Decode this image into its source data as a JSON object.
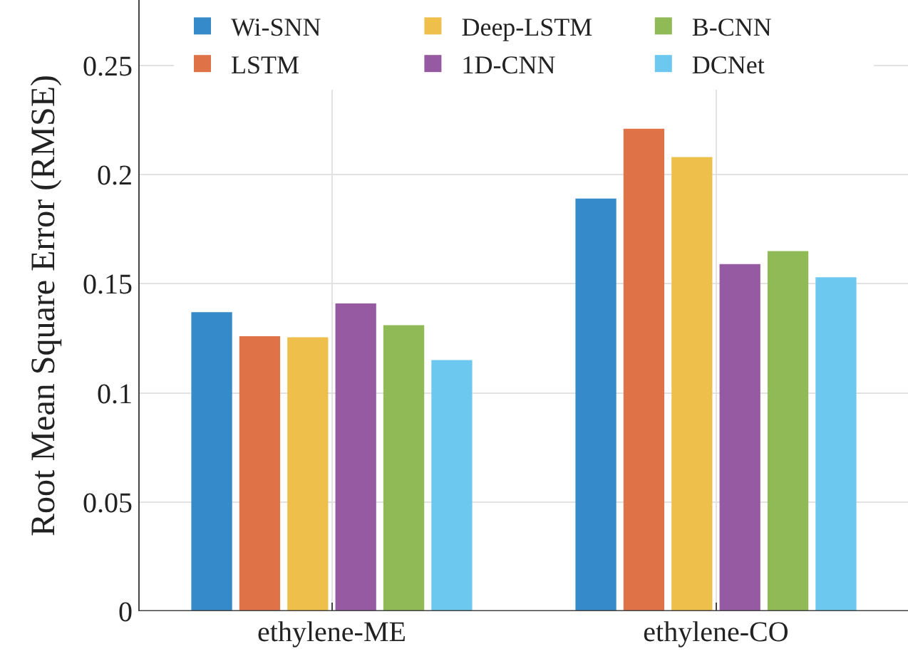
{
  "chart_data": {
    "type": "bar",
    "ylabel": "Root Mean Square Error (RMSE)",
    "categories": [
      "ethylene-ME",
      "ethylene-CO"
    ],
    "series": [
      {
        "name": "Wi-SNN",
        "color": "#358ac9",
        "values": [
          0.137,
          0.189
        ]
      },
      {
        "name": "LSTM",
        "color": "#e07248",
        "values": [
          0.126,
          0.221
        ]
      },
      {
        "name": "Deep-LSTM",
        "color": "#eebf4b",
        "values": [
          0.1255,
          0.208
        ]
      },
      {
        "name": "1D-CNN",
        "color": "#965aa2",
        "values": [
          0.141,
          0.159
        ]
      },
      {
        "name": "B-CNN",
        "color": "#8fba55",
        "values": [
          0.131,
          0.165
        ]
      },
      {
        "name": "DCNet",
        "color": "#6cc8ef",
        "values": [
          0.115,
          0.153
        ]
      }
    ],
    "ylim": [
      0,
      0.28
    ],
    "yticks": [
      0,
      0.05,
      0.1,
      {
        "value": 0.15,
        "label": "0.15"
      },
      {
        "value": 0.2,
        "label": "0.2"
      },
      0.25
    ],
    "grid": true,
    "legend": "top"
  }
}
